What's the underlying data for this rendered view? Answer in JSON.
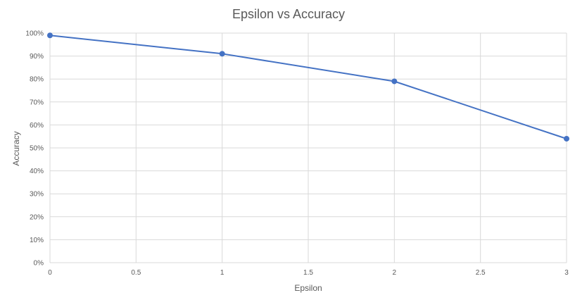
{
  "chart_data": {
    "type": "line",
    "title": "Epsilon vs Accuracy",
    "xlabel": "Epsilon",
    "ylabel": "Accuracy",
    "x": [
      0,
      1,
      2,
      3
    ],
    "series": [
      {
        "values": [
          0.99,
          0.91,
          0.79,
          0.54
        ]
      }
    ],
    "xlim": [
      0,
      3
    ],
    "ylim": [
      0,
      1
    ],
    "xticks": [
      0,
      0.5,
      1,
      1.5,
      2,
      2.5,
      3
    ],
    "xtick_labels": [
      "0",
      "0.5",
      "1",
      "1.5",
      "2",
      "2.5",
      "3"
    ],
    "yticks": [
      0,
      0.1,
      0.2,
      0.3,
      0.4,
      0.5,
      0.6,
      0.7,
      0.8,
      0.9,
      1.0
    ],
    "ytick_labels": [
      "0%",
      "10%",
      "20%",
      "30%",
      "40%",
      "50%",
      "60%",
      "70%",
      "80%",
      "90%",
      "100%"
    ],
    "grid": true,
    "legend": "none",
    "colors": {
      "line": "#4472C4",
      "grid": "#D9D9D9",
      "text": "#595959"
    }
  }
}
